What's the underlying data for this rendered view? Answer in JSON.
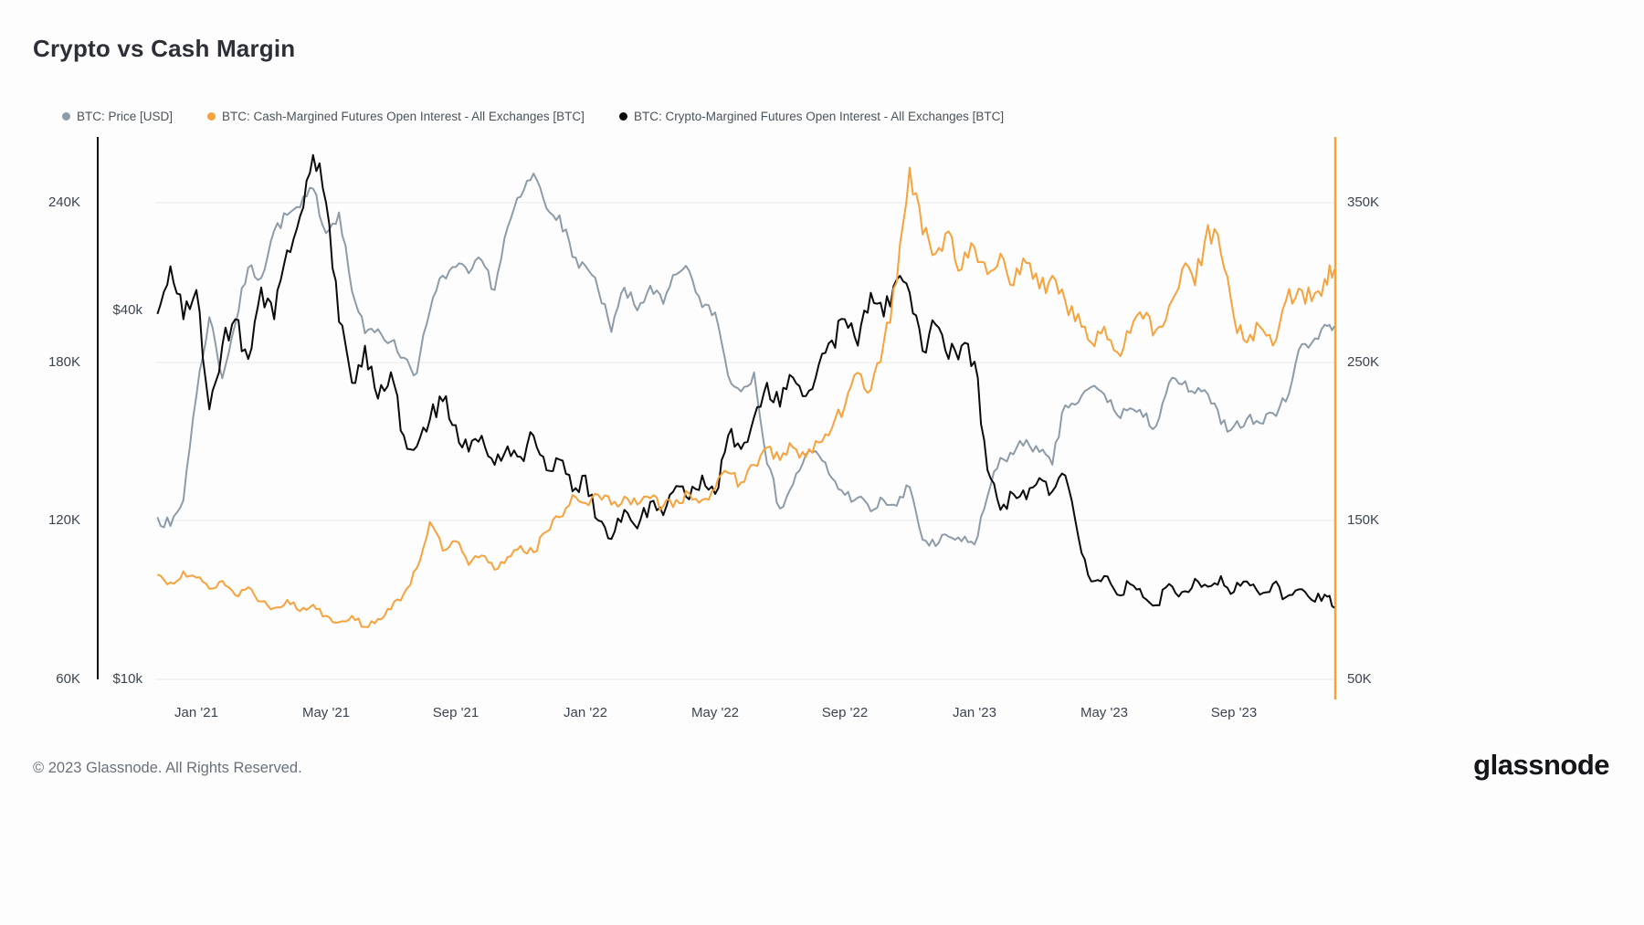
{
  "title": "Crypto vs Cash Margin",
  "legend": [
    {
      "label": "BTC: Price [USD]",
      "color": "#8d9ca8"
    },
    {
      "label": "BTC: Cash-Margined Futures Open Interest - All Exchanges [BTC]",
      "color": "#f7a23a"
    },
    {
      "label": "BTC: Crypto-Margined Futures Open Interest - All Exchanges [BTC]",
      "color": "#0b0b0e"
    }
  ],
  "axes": {
    "left_oi": [
      "240K",
      "180K",
      "120K",
      "60K"
    ],
    "price": [
      "$40k",
      "$10k"
    ],
    "right_oi": [
      "350K",
      "250K",
      "150K",
      "50K"
    ],
    "x": [
      "Jan '21",
      "May '21",
      "Sep '21",
      "Jan '22",
      "May '22",
      "Sep '22",
      "Jan '23",
      "May '23",
      "Sep '23"
    ]
  },
  "footer": {
    "copyright": "© 2023 Glassnode. All Rights Reserved.",
    "brand": "glassnode"
  },
  "chart_data": {
    "type": "line",
    "title": "Crypto vs Cash Margin",
    "x_unit": "months since Jan 2021 (approx. 12-day samples, Nov 2020 - Dec 2023)",
    "x": [
      -1.2,
      -0.8,
      -0.4,
      0,
      0.4,
      0.8,
      1.2,
      1.6,
      2,
      2.4,
      2.8,
      3.2,
      3.6,
      4,
      4.4,
      4.8,
      5.2,
      5.6,
      6,
      6.4,
      6.8,
      7.2,
      7.6,
      8,
      8.4,
      8.8,
      9.2,
      9.6,
      10,
      10.4,
      10.8,
      11.2,
      11.6,
      12,
      12.4,
      12.8,
      13.2,
      13.6,
      14,
      14.4,
      14.8,
      15.2,
      15.6,
      16,
      16.4,
      16.8,
      17.2,
      17.6,
      18,
      18.4,
      18.8,
      19.2,
      19.6,
      20,
      20.4,
      20.8,
      21.2,
      21.6,
      22,
      22.4,
      22.8,
      23.2,
      23.6,
      24,
      24.4,
      24.8,
      25.2,
      25.6,
      26,
      26.4,
      26.8,
      27.2,
      27.6,
      28,
      28.4,
      28.8,
      29.2,
      29.6,
      30,
      30.4,
      30.8,
      31.2,
      31.6,
      32,
      32.4,
      32.8,
      33.2,
      33.6,
      34,
      34.4,
      34.8,
      35.1
    ],
    "x_ticks": [
      "Jan '21",
      "May '21",
      "Sep '21",
      "Jan '22",
      "May '22",
      "Sep '22",
      "Jan '23",
      "May '23",
      "Sep '23"
    ],
    "series": [
      {
        "name": "BTC: Price [USD]",
        "color": "#8d9ca8",
        "axis": "price_log_usd_k",
        "unit": "thousand USD",
        "values": [
          18.4,
          17.8,
          19.6,
          29,
          39,
          31,
          38,
          47,
          45.2,
          54,
          57.3,
          58.9,
          63.2,
          53.5,
          57.8,
          43,
          36.7,
          37.3,
          35.6,
          33.5,
          31.6,
          39.9,
          45.6,
          47.1,
          46,
          48.3,
          43.2,
          54.7,
          61.3,
          66.9,
          58.7,
          57.2,
          48.9,
          47.3,
          43.1,
          36.9,
          43.6,
          40,
          43.9,
          41,
          45.8,
          46.4,
          40.5,
          39.7,
          31.3,
          29.5,
          31.7,
          22.5,
          19,
          20.8,
          23.3,
          23.2,
          21.3,
          20,
          19.8,
          18.8,
          19.6,
          19.2,
          20.6,
          16.9,
          16.5,
          17.1,
          16.8,
          16.6,
          19.9,
          23,
          23.3,
          24.6,
          23.5,
          22.4,
          28,
          28.3,
          30,
          29.2,
          27,
          27.7,
          26.8,
          25.9,
          30.5,
          30.3,
          29.3,
          29.2,
          26.1,
          25.9,
          26.6,
          26.2,
          27.2,
          28.4,
          34.5,
          35.4,
          37.9,
          37.7
        ]
      },
      {
        "name": "BTC: Cash-Margined Futures Open Interest - All Exchanges [BTC]",
        "color": "#f7a23a",
        "axis": "right_linear_k_btc",
        "unit": "thousand BTC",
        "values": [
          116,
          111,
          118,
          114,
          107,
          112,
          103,
          108,
          99,
          95,
          100,
          93,
          97,
          90,
          86,
          90,
          83,
          88,
          94,
          104,
          120,
          149,
          131,
          137,
          122,
          128,
          119,
          127,
          134,
          130,
          143,
          152,
          166,
          161,
          166,
          160,
          165,
          160,
          164,
          159,
          163,
          167,
          163,
          170,
          180,
          174,
          185,
          196,
          188,
          196,
          190,
          199,
          208,
          222,
          243,
          232,
          262,
          300,
          372,
          330,
          318,
          332,
          308,
          322,
          305,
          318,
          298,
          312,
          296,
          304,
          288,
          280,
          262,
          272,
          256,
          268,
          277,
          270,
          285,
          308,
          298,
          336,
          318,
          278,
          262,
          272,
          260,
          288,
          296,
          288,
          302,
          308
        ]
      },
      {
        "name": "BTC: Crypto-Margined Futures Open Interest - All Exchanges [BTC]",
        "color": "#0b0b0e",
        "axis": "left_linear_k_btc",
        "unit": "thousand BTC",
        "values": [
          198,
          216,
          196,
          207,
          162,
          186,
          196,
          181,
          208,
          196,
          222,
          235,
          258,
          240,
          195,
          172,
          186,
          166,
          176,
          152,
          148,
          158,
          165,
          156,
          146,
          152,
          141,
          148,
          144,
          152,
          139,
          143,
          131,
          137,
          120,
          113,
          124,
          117,
          127,
          122,
          133,
          128,
          137,
          130,
          152,
          147,
          159,
          172,
          163,
          174,
          167,
          179,
          188,
          196,
          186,
          206,
          197,
          211,
          206,
          184,
          194,
          181,
          186,
          180,
          139,
          124,
          130,
          128,
          136,
          131,
          137,
          114,
          97,
          99,
          92,
          96,
          91,
          88,
          96,
          93,
          98,
          95,
          99,
          93,
          97,
          92,
          96,
          91,
          94,
          90,
          92,
          87
        ]
      }
    ],
    "axis_ranges": {
      "price_log_usd_k": {
        "scale": "log",
        "ticks": [
          10,
          40
        ],
        "label": "USD"
      },
      "left_linear_k_btc": {
        "scale": "linear",
        "ticks": [
          60,
          120,
          180,
          240
        ],
        "label": "BTC"
      },
      "right_linear_k_btc": {
        "scale": "linear",
        "ticks": [
          50,
          150,
          250,
          350
        ],
        "label": "BTC"
      }
    },
    "grid": "horizontal",
    "legend_position": "top"
  }
}
